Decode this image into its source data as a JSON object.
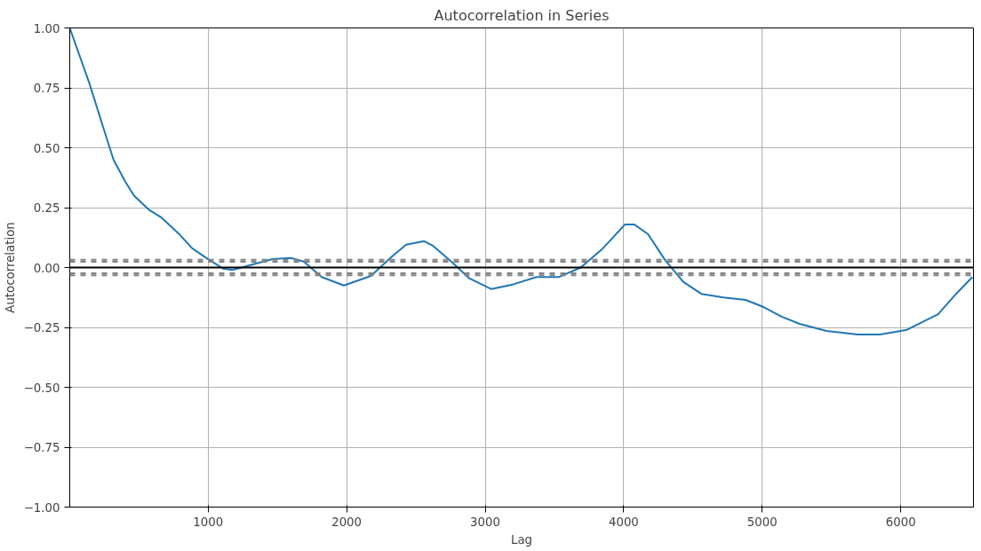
{
  "chart_data": {
    "type": "line",
    "title": "Autocorrelation in Series",
    "xlabel": "Lag",
    "ylabel": "Autocorrelation",
    "x": [
      1,
      142,
      240,
      317,
      400,
      465,
      575,
      660,
      790,
      885,
      1000,
      1110,
      1175,
      1335,
      1465,
      1595,
      1690,
      1820,
      1980,
      2175,
      2335,
      2430,
      2560,
      2625,
      2755,
      2885,
      3045,
      3205,
      3370,
      3530,
      3690,
      3850,
      4010,
      4075,
      4175,
      4300,
      4430,
      4560,
      4720,
      4880,
      5010,
      5140,
      5270,
      5465,
      5690,
      5850,
      6045,
      6270,
      6400,
      6517
    ],
    "series": [
      {
        "color": "#1f77b4",
        "values": [
          1.0,
          0.77,
          0.59,
          0.45,
          0.36,
          0.3,
          0.24,
          0.21,
          0.14,
          0.08,
          0.035,
          -0.005,
          -0.01,
          0.015,
          0.035,
          0.04,
          0.025,
          -0.04,
          -0.075,
          -0.035,
          0.05,
          0.095,
          0.11,
          0.09,
          0.025,
          -0.045,
          -0.09,
          -0.07,
          -0.04,
          -0.04,
          0.0,
          0.08,
          0.18,
          0.18,
          0.14,
          0.03,
          -0.06,
          -0.11,
          -0.125,
          -0.135,
          -0.165,
          -0.205,
          -0.235,
          -0.265,
          -0.28,
          -0.28,
          -0.26,
          -0.195,
          -0.11,
          -0.04
        ]
      }
    ],
    "xlim": [
      1,
      6525
    ],
    "xticks": [
      1000,
      2000,
      3000,
      4000,
      5000,
      6000
    ],
    "ylim": [
      -1,
      1
    ],
    "yticks": [
      {
        "value": -1,
        "label": "−1.00"
      },
      {
        "value": -0.75,
        "label": "−0.75"
      },
      {
        "value": -0.5,
        "label": "−0.50"
      },
      {
        "value": -0.25,
        "label": "−0.25"
      },
      {
        "value": 0,
        "label": "0.00"
      },
      {
        "value": 0.25,
        "label": "0.25"
      },
      {
        "value": 0.5,
        "label": "0.50"
      },
      {
        "value": 0.75,
        "label": "0.75"
      },
      {
        "value": 1,
        "label": "1.00"
      }
    ],
    "ref_lines": [
      {
        "axis": "y",
        "value": 0.032,
        "color": "#808080",
        "line_style": "dashed"
      },
      {
        "axis": "y",
        "value": 0.024,
        "color": "#808080",
        "line_style": "dashed"
      },
      {
        "axis": "y",
        "value": 0,
        "color": "#000000",
        "line_style": "solid"
      },
      {
        "axis": "y",
        "value": -0.024,
        "color": "#808080",
        "line_style": "dashed"
      },
      {
        "axis": "y",
        "value": -0.032,
        "color": "#808080",
        "line_style": "dashed"
      }
    ],
    "grid": true,
    "line_style": "solid",
    "marker": "none"
  }
}
